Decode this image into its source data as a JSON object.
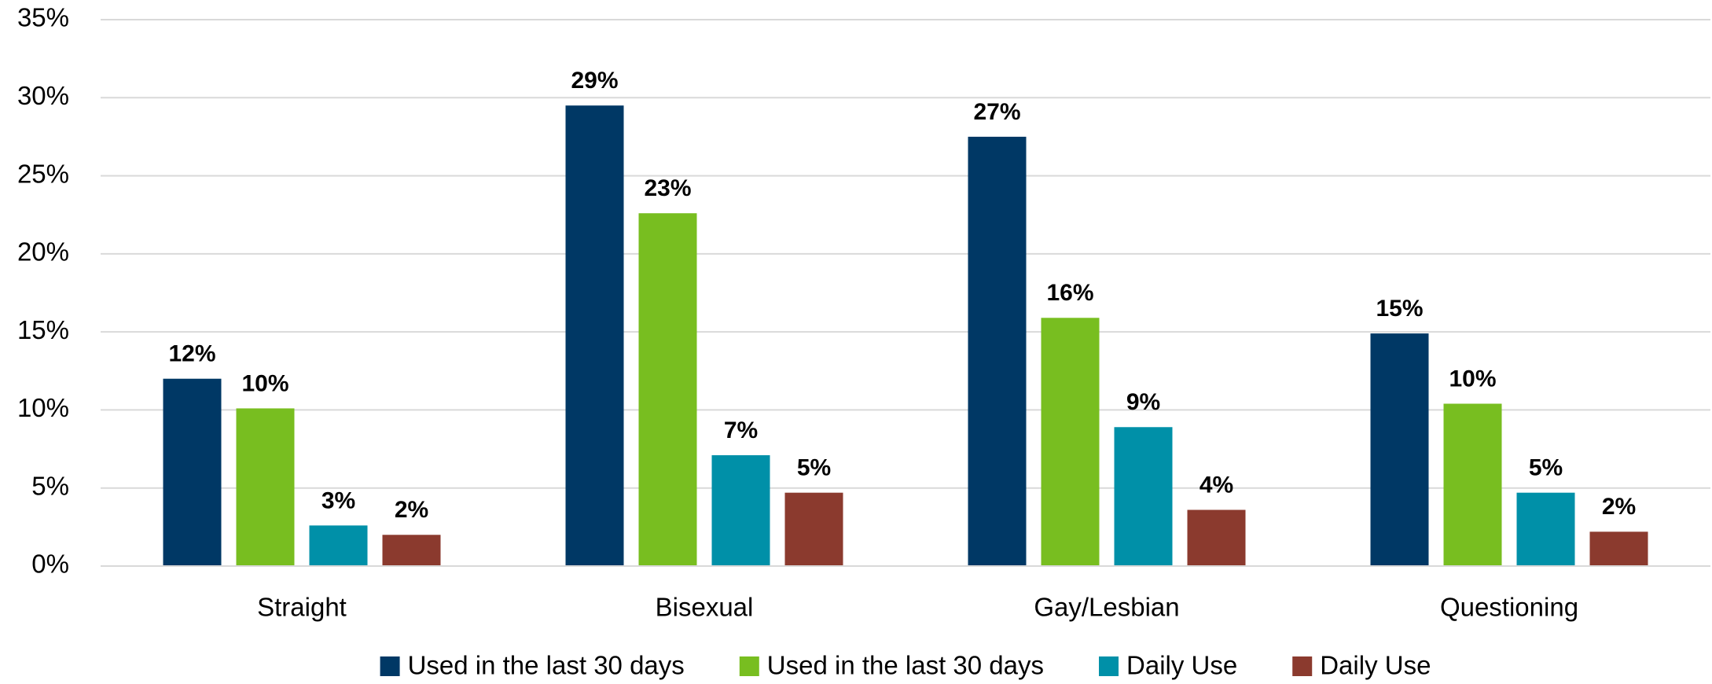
{
  "chart_data": {
    "type": "bar",
    "categories": [
      "Straight",
      "Bisexual",
      "Gay/Lesbian",
      "Questioning"
    ],
    "series": [
      {
        "name": "Used in the last 30 days",
        "color": "#003865",
        "values": [
          12.0,
          29.5,
          27.5,
          14.9
        ],
        "value_labels": [
          "12%",
          "29%",
          "27%",
          "15%"
        ]
      },
      {
        "name": "Used in the last 30 days",
        "color": "#78be20",
        "values": [
          10.1,
          22.6,
          15.9,
          10.4
        ],
        "value_labels": [
          "10%",
          "23%",
          "16%",
          "10%"
        ]
      },
      {
        "name": "Daily Use",
        "color": "#0090a8",
        "values": [
          2.6,
          7.1,
          8.9,
          4.7
        ],
        "value_labels": [
          "3%",
          "7%",
          "9%",
          "5%"
        ]
      },
      {
        "name": "Daily Use",
        "color": "#8b3a2e",
        "values": [
          2.0,
          4.7,
          3.6,
          2.2
        ],
        "value_labels": [
          "2%",
          "5%",
          "4%",
          "2%"
        ]
      }
    ],
    "ylim": [
      0,
      35
    ],
    "yticks": [
      {
        "value": 0,
        "label": "0%"
      },
      {
        "value": 5,
        "label": "5%"
      },
      {
        "value": 10,
        "label": "10%"
      },
      {
        "value": 15,
        "label": "15%"
      },
      {
        "value": 20,
        "label": "20%"
      },
      {
        "value": 25,
        "label": "25%"
      },
      {
        "value": 30,
        "label": "30%"
      },
      {
        "value": 35,
        "label": "35%"
      }
    ],
    "grid": true,
    "legend": "bottom"
  }
}
